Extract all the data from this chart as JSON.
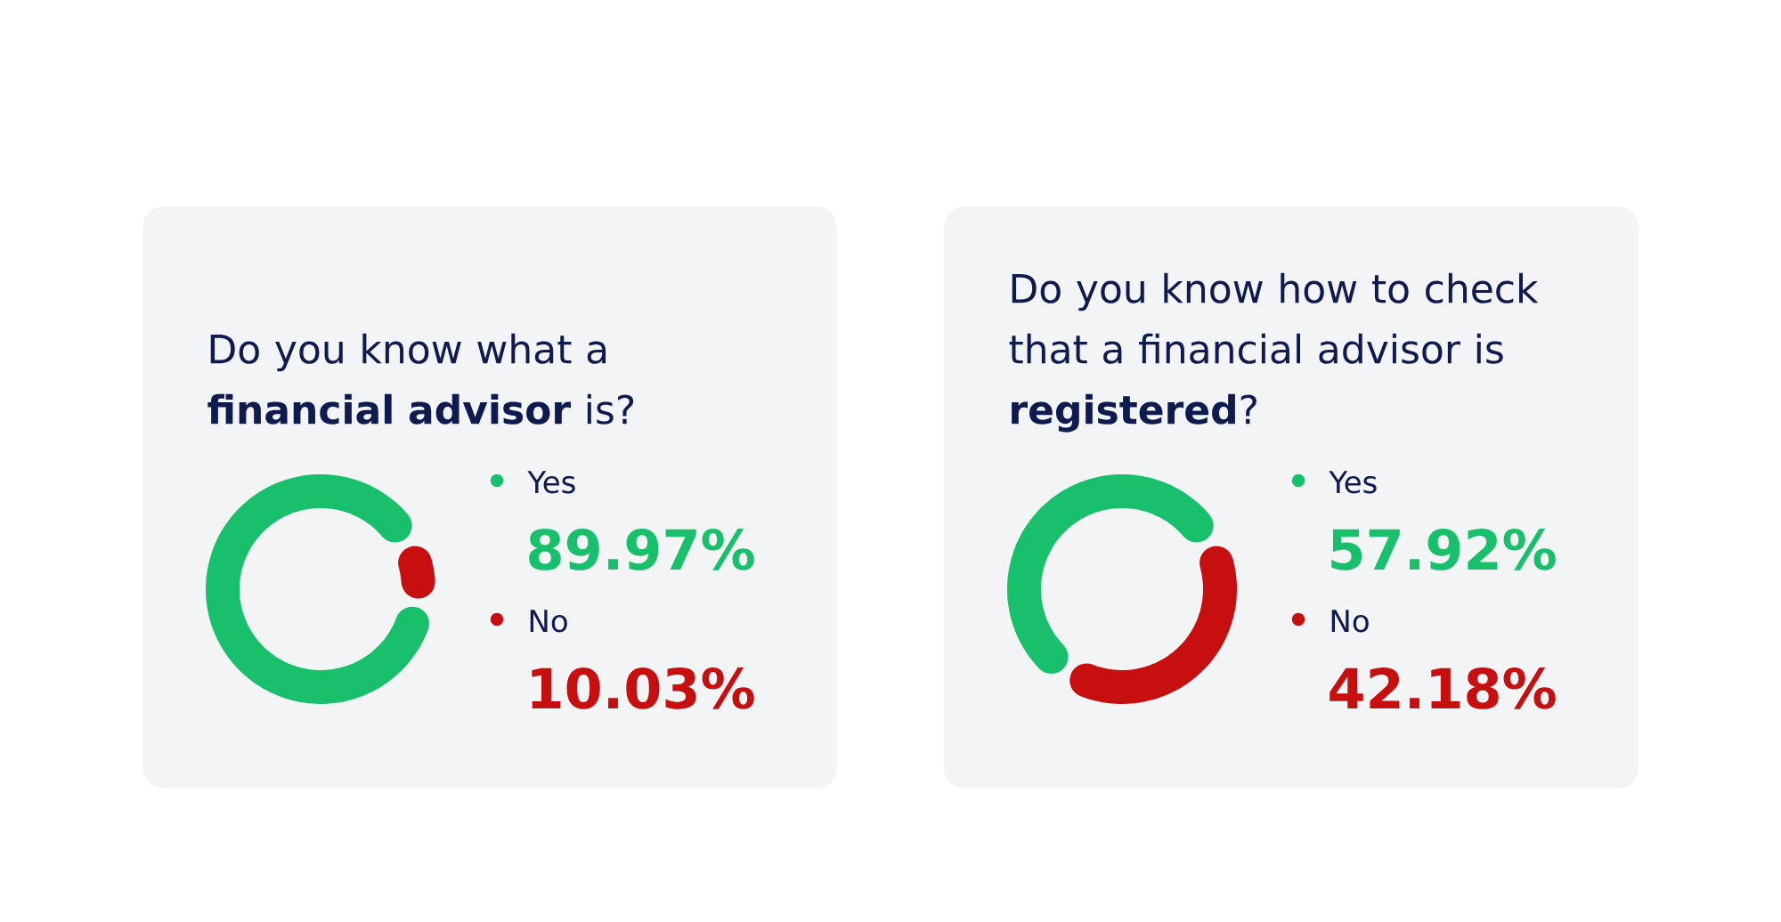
{
  "chart_data": [
    {
      "type": "donut",
      "title": "Do you know what a **financial advisor** is?",
      "categories": [
        "Yes",
        "No"
      ],
      "values": [
        89.97,
        10.03
      ],
      "colors": [
        "#19c06b",
        "#c70f10"
      ],
      "value_labels": [
        "89.97%",
        "10.03%"
      ],
      "legend": "right"
    },
    {
      "type": "donut",
      "title": "Do you know how to check that a financial advisor is **registered**?",
      "categories": [
        "Yes",
        "No"
      ],
      "values": [
        57.92,
        42.18
      ],
      "colors": [
        "#19c06b",
        "#c70f10"
      ],
      "value_labels": [
        "57.92%",
        "42.18%"
      ],
      "legend": "right"
    }
  ]
}
